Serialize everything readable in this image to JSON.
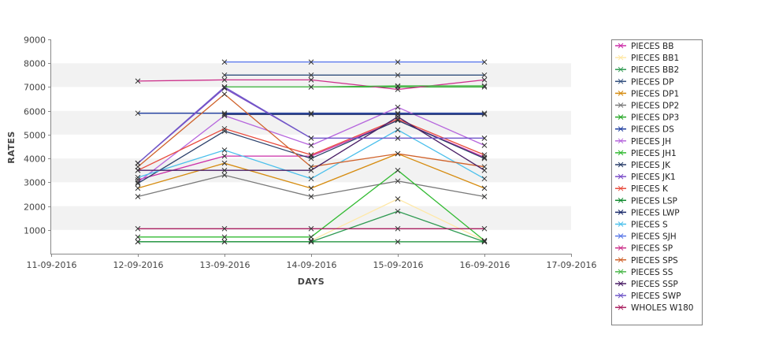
{
  "chart_data": {
    "type": "line",
    "xlabel": "DAYS",
    "ylabel": "RATES",
    "x_ticks": [
      "11-09-2016",
      "12-09-2016",
      "13-09-2016",
      "14-09-2016",
      "15-09-2016",
      "16-09-2016",
      "17-09-2016"
    ],
    "xlim": [
      "11-09-2016",
      "17-09-2016"
    ],
    "ylim": [
      0,
      9000
    ],
    "y_ticks": [
      1000,
      2000,
      3000,
      4000,
      5000,
      6000,
      7000,
      8000,
      9000
    ],
    "grid": "alternating horizontal bands",
    "legend_position": "right",
    "series": [
      {
        "name": "PIECES BB",
        "color": "#cc2fa8",
        "x": [
          "12-09-2016",
          "13-09-2016",
          "14-09-2016",
          "15-09-2016",
          "16-09-2016"
        ],
        "values": [
          3100,
          4100,
          4100,
          5600,
          4050
        ]
      },
      {
        "name": "PIECES BB1",
        "color": "#ffe8a6",
        "x": [
          "14-09-2016",
          "15-09-2016",
          "16-09-2016"
        ],
        "values": [
          550,
          2300,
          550
        ]
      },
      {
        "name": "PIECES BB2",
        "color": "#2f9a52",
        "x": [
          "12-09-2016",
          "13-09-2016",
          "14-09-2016",
          "15-09-2016",
          "16-09-2016"
        ],
        "values": [
          500,
          500,
          500,
          1780,
          500
        ]
      },
      {
        "name": "PIECES DP",
        "color": "#33507e",
        "x": [
          "13-09-2016",
          "14-09-2016",
          "15-09-2016",
          "16-09-2016"
        ],
        "values": [
          7500,
          7500,
          7500,
          7500
        ]
      },
      {
        "name": "PIECES DP1",
        "color": "#d68c10",
        "x": [
          "12-09-2016",
          "13-09-2016",
          "14-09-2016",
          "15-09-2016",
          "16-09-2016"
        ],
        "values": [
          2750,
          3800,
          2750,
          4200,
          2750
        ]
      },
      {
        "name": "PIECES DP2",
        "color": "#7a7a7a",
        "x": [
          "12-09-2016",
          "13-09-2016",
          "14-09-2016",
          "15-09-2016",
          "16-09-2016"
        ],
        "values": [
          2400,
          3300,
          2400,
          3050,
          2400
        ]
      },
      {
        "name": "PIECES DP3",
        "color": "#28a828",
        "x": [
          "13-09-2016",
          "14-09-2016",
          "15-09-2016",
          "16-09-2016"
        ],
        "values": [
          7000,
          7000,
          7000,
          7000
        ]
      },
      {
        "name": "PIECES DS",
        "color": "#1d3c9e",
        "x": [
          "12-09-2016",
          "13-09-2016",
          "14-09-2016",
          "15-09-2016",
          "16-09-2016"
        ],
        "values": [
          5900,
          5900,
          5900,
          5900,
          5900
        ]
      },
      {
        "name": "PIECES JH",
        "color": "#b666dd",
        "x": [
          "12-09-2016",
          "13-09-2016",
          "14-09-2016",
          "15-09-2016",
          "16-09-2016"
        ],
        "values": [
          3000,
          5800,
          4550,
          6150,
          4550
        ]
      },
      {
        "name": "PIECES JH1",
        "color": "#33bb33",
        "x": [
          "12-09-2016",
          "13-09-2016",
          "14-09-2016",
          "15-09-2016",
          "16-09-2016"
        ],
        "values": [
          700,
          700,
          700,
          3500,
          550
        ]
      },
      {
        "name": "PIECES JK",
        "color": "#2a3f6a",
        "x": [
          "12-09-2016",
          "13-09-2016",
          "14-09-2016",
          "15-09-2016",
          "16-09-2016"
        ],
        "values": [
          2950,
          5150,
          4000,
          5600,
          4000
        ]
      },
      {
        "name": "PIECES JK1",
        "color": "#7a4cc8",
        "x": [
          "12-09-2016",
          "13-09-2016",
          "14-09-2016",
          "15-09-2016",
          "16-09-2016"
        ],
        "values": [
          3800,
          6950,
          4850,
          4850,
          4850
        ]
      },
      {
        "name": "PIECES K",
        "color": "#e84a3c",
        "x": [
          "12-09-2016",
          "13-09-2016",
          "14-09-2016",
          "15-09-2016",
          "16-09-2016"
        ],
        "values": [
          3500,
          5250,
          4150,
          5650,
          4150
        ]
      },
      {
        "name": "PIECES LSP",
        "color": "#0f8a2e",
        "x": [
          "12-09-2016",
          "13-09-2016",
          "14-09-2016",
          "15-09-2016",
          "16-09-2016"
        ],
        "values": [
          500,
          500,
          500,
          500,
          500
        ]
      },
      {
        "name": "PIECES LWP",
        "color": "#1a2a6a",
        "x": [
          "13-09-2016",
          "14-09-2016",
          "15-09-2016",
          "16-09-2016"
        ],
        "values": [
          5850,
          5850,
          5850,
          5850
        ]
      },
      {
        "name": "PIECES S",
        "color": "#4cc0ec",
        "x": [
          "12-09-2016",
          "13-09-2016",
          "14-09-2016",
          "15-09-2016",
          "16-09-2016"
        ],
        "values": [
          3200,
          4350,
          3150,
          5200,
          3150
        ]
      },
      {
        "name": "PIECES SJH",
        "color": "#5a78e8",
        "x": [
          "13-09-2016",
          "14-09-2016",
          "15-09-2016",
          "16-09-2016"
        ],
        "values": [
          8050,
          8050,
          8050,
          8050
        ]
      },
      {
        "name": "PIECES SP",
        "color": "#cc2f8a",
        "x": [
          "12-09-2016",
          "13-09-2016",
          "14-09-2016",
          "15-09-2016",
          "16-09-2016"
        ],
        "values": [
          7250,
          7300,
          7300,
          6900,
          7300
        ]
      },
      {
        "name": "PIECES SPS",
        "color": "#d0632c",
        "x": [
          "12-09-2016",
          "13-09-2016",
          "14-09-2016",
          "15-09-2016",
          "16-09-2016"
        ],
        "values": [
          3650,
          6700,
          3650,
          4200,
          3650
        ]
      },
      {
        "name": "PIECES SS",
        "color": "#4ab84a",
        "x": [
          "13-09-2016",
          "14-09-2016",
          "15-09-2016",
          "16-09-2016"
        ],
        "values": [
          7000,
          7000,
          7050,
          7050
        ]
      },
      {
        "name": "PIECES SSP",
        "color": "#4a1f66",
        "x": [
          "12-09-2016",
          "13-09-2016",
          "14-09-2016",
          "15-09-2016",
          "16-09-2016"
        ],
        "values": [
          3500,
          3500,
          3500,
          5750,
          3500
        ]
      },
      {
        "name": "PIECES SWP",
        "color": "#7058c8",
        "x": [
          "12-09-2016",
          "13-09-2016",
          "14-09-2016",
          "15-09-2016",
          "16-09-2016"
        ],
        "values": [
          3800,
          7000,
          4850,
          4850,
          4850
        ]
      },
      {
        "name": "WHOLES W180",
        "color": "#aa2060",
        "x": [
          "12-09-2016",
          "13-09-2016",
          "14-09-2016",
          "15-09-2016",
          "16-09-2016"
        ],
        "values": [
          1050,
          1050,
          1050,
          1050,
          1050
        ]
      }
    ]
  }
}
